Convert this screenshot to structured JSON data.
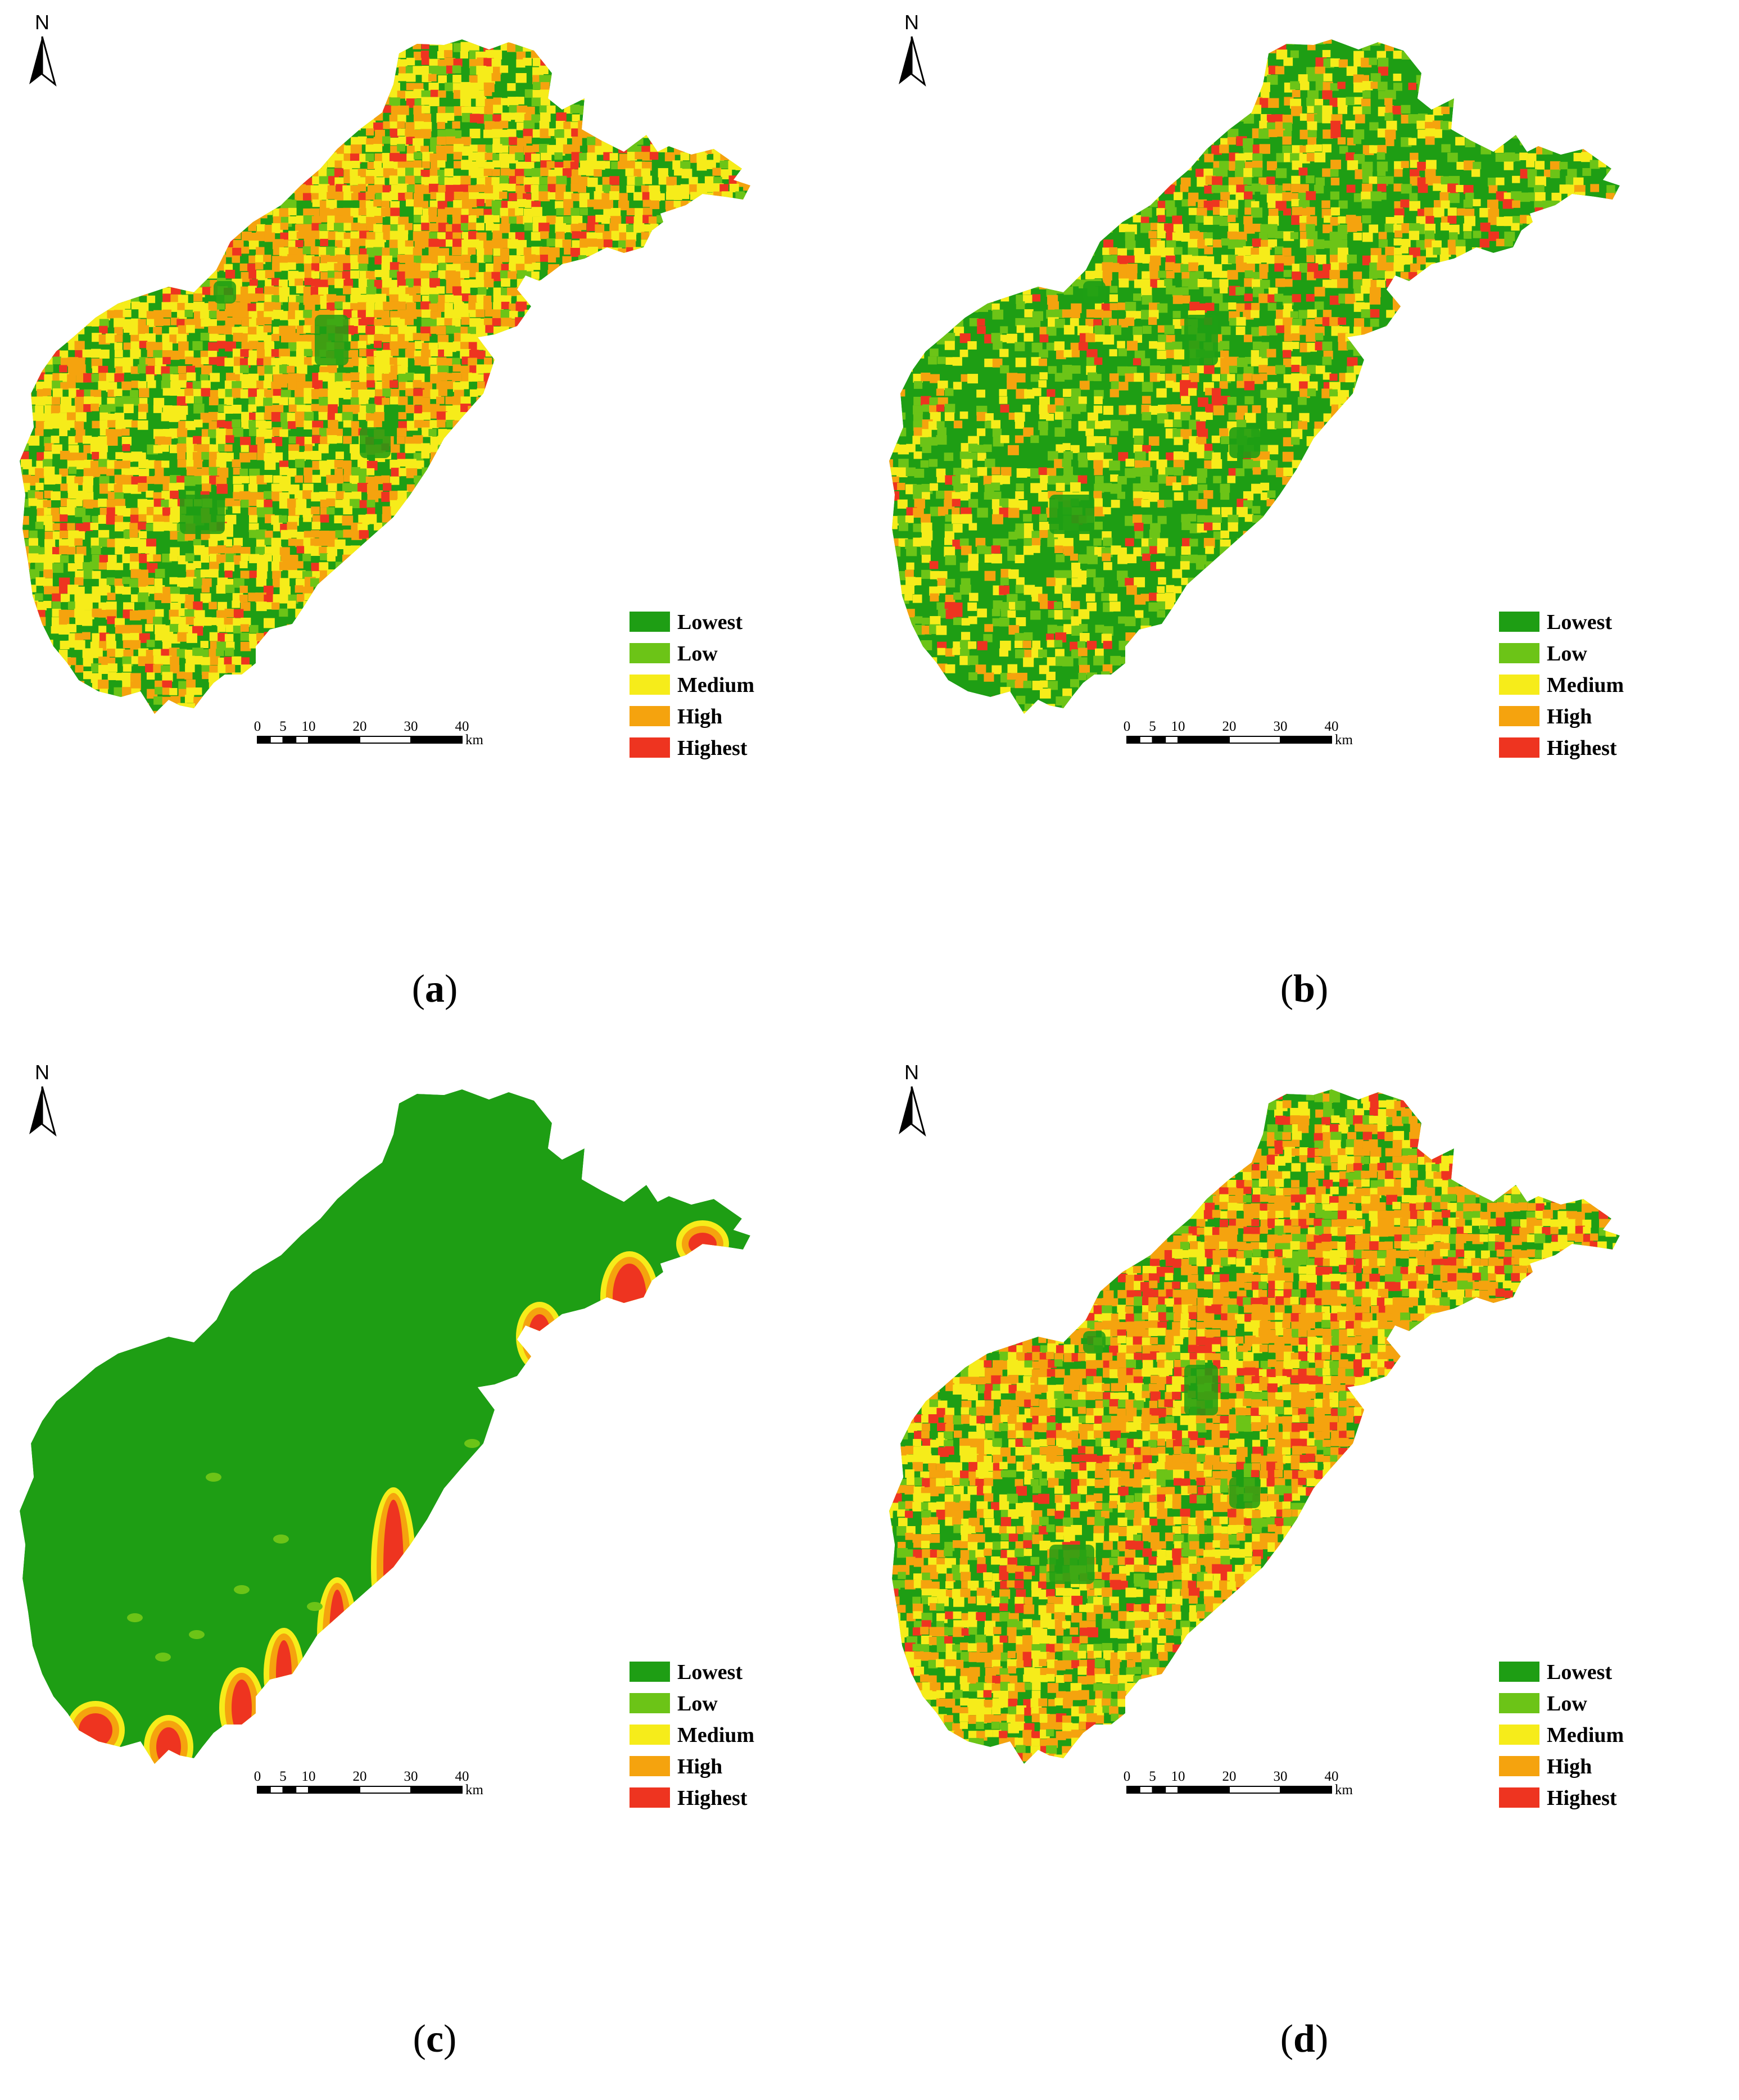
{
  "panels": [
    {
      "id": "a",
      "label": "a",
      "pattern": "mixed_yellow_orange",
      "colors": [
        "#1e9e14",
        "#6cc417",
        "#f6ec1a",
        "#f5a30e",
        "#ee3420"
      ],
      "weights": [
        0.3,
        0.1,
        0.33,
        0.22,
        0.05
      ]
    },
    {
      "id": "b",
      "label": "b",
      "pattern": "mostly_green",
      "colors": [
        "#1e9e14",
        "#6cc417",
        "#f6ec1a",
        "#f5a30e",
        "#ee3420"
      ],
      "weights": [
        0.55,
        0.17,
        0.17,
        0.08,
        0.03
      ]
    },
    {
      "id": "c",
      "label": "c",
      "pattern": "green_coastal_red",
      "colors": [
        "#1e9e14",
        "#6cc417",
        "#f6ec1a",
        "#f5a30e",
        "#ee3420"
      ],
      "weights": [
        0.95,
        0.02,
        0.01,
        0.01,
        0.01
      ]
    },
    {
      "id": "d",
      "label": "d",
      "pattern": "mixed_orange_red",
      "colors": [
        "#1e9e14",
        "#6cc417",
        "#f6ec1a",
        "#f5a30e",
        "#ee3420"
      ],
      "weights": [
        0.28,
        0.12,
        0.26,
        0.26,
        0.08
      ]
    }
  ],
  "legend": {
    "items": [
      {
        "label": "Lowest",
        "color": "#1e9e14"
      },
      {
        "label": "Low",
        "color": "#6cc417"
      },
      {
        "label": "Medium",
        "color": "#f6ec1a"
      },
      {
        "label": "High",
        "color": "#f5a30e"
      },
      {
        "label": "Highest",
        "color": "#ee3420"
      }
    ]
  },
  "scale_bar": {
    "ticks": [
      "0",
      "5",
      "10",
      "20",
      "30",
      "40"
    ],
    "unit": "km"
  },
  "north_arrow": {
    "label": "N",
    "icon": "north-arrow-icon"
  }
}
